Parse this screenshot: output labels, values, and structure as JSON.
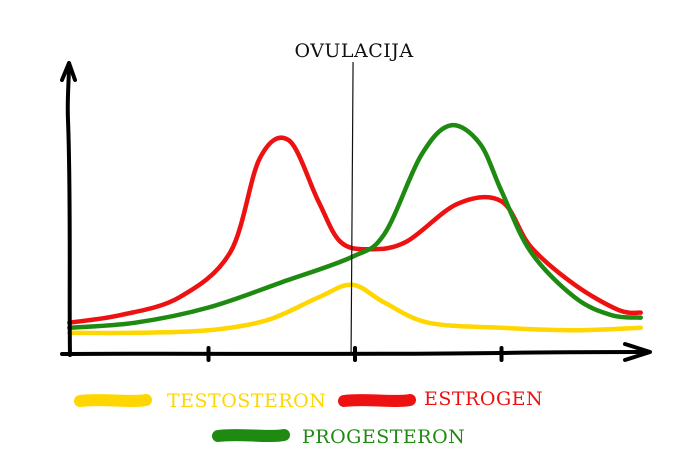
{
  "chart_data": {
    "type": "line",
    "title": "",
    "xlabel": "",
    "ylabel": "",
    "grid": false,
    "xlim": [
      0,
      4
    ],
    "ylim": [
      0,
      1
    ],
    "x_ticks": [
      1,
      2,
      3
    ],
    "annotation": {
      "label": "OVULACIJA",
      "x": 1.98
    },
    "legend": {
      "placement": "bottom-center"
    },
    "series": [
      {
        "name": "TESTOSTERON",
        "color": "#FFD600",
        "x": [
          0.05,
          0.5,
          1.0,
          1.4,
          1.75,
          1.98,
          2.2,
          2.5,
          3.0,
          3.5,
          3.95
        ],
        "y": [
          0.06,
          0.06,
          0.07,
          0.11,
          0.2,
          0.25,
          0.18,
          0.1,
          0.08,
          0.07,
          0.08
        ]
      },
      {
        "name": "ESTROGEN",
        "color": "#EE1111",
        "x": [
          0.05,
          0.4,
          0.8,
          1.15,
          1.35,
          1.55,
          1.75,
          1.9,
          2.1,
          2.35,
          2.7,
          3.0,
          3.2,
          3.5,
          3.8,
          3.95
        ],
        "y": [
          0.1,
          0.13,
          0.2,
          0.38,
          0.75,
          0.82,
          0.58,
          0.42,
          0.39,
          0.42,
          0.57,
          0.58,
          0.4,
          0.25,
          0.15,
          0.14
        ]
      },
      {
        "name": "PROGESTERON",
        "color": "#1E8A12",
        "x": [
          0.05,
          0.5,
          1.0,
          1.5,
          1.98,
          2.2,
          2.45,
          2.65,
          2.85,
          3.0,
          3.2,
          3.5,
          3.75,
          3.95
        ],
        "y": [
          0.08,
          0.1,
          0.16,
          0.26,
          0.36,
          0.45,
          0.76,
          0.88,
          0.81,
          0.62,
          0.38,
          0.2,
          0.13,
          0.12
        ]
      }
    ]
  }
}
